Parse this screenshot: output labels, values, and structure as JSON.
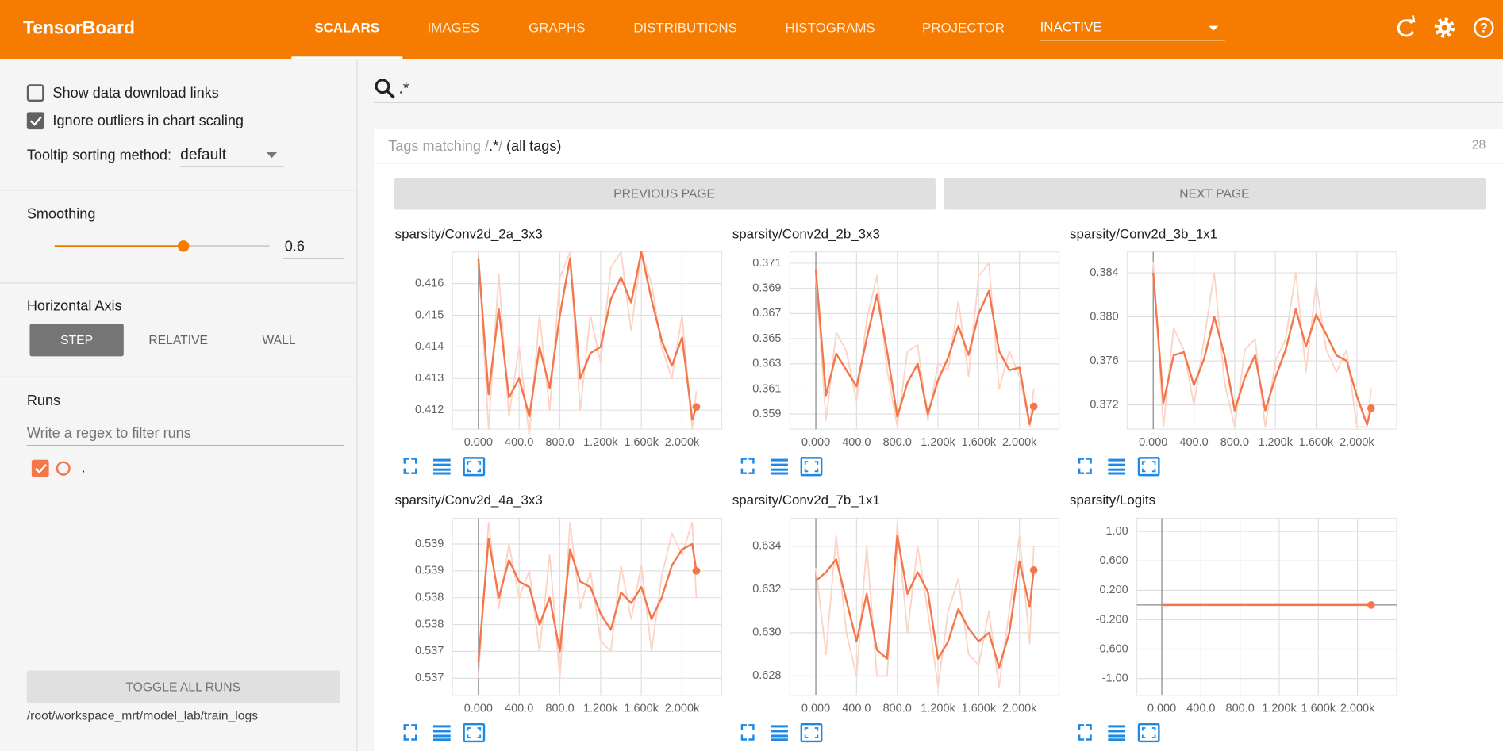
{
  "header": {
    "title": "TensorBoard",
    "tabs": [
      "SCALARS",
      "IMAGES",
      "GRAPHS",
      "DISTRIBUTIONS",
      "HISTOGRAMS",
      "PROJECTOR"
    ],
    "selected_tab": 0,
    "run_selector": "INACTIVE"
  },
  "sidebar": {
    "options": [
      {
        "label": "Show data download links",
        "checked": false
      },
      {
        "label": "Ignore outliers in chart scaling",
        "checked": true
      }
    ],
    "tooltip_label": "Tooltip sorting method:",
    "tooltip_value": "default",
    "smoothing_label": "Smoothing",
    "smoothing": 0.6,
    "axis_label": "Horizontal Axis",
    "axis_options": [
      "STEP",
      "RELATIVE",
      "WALL"
    ],
    "axis_selected": 0,
    "runs_label": "Runs",
    "runs_filter_placeholder": "Write a regex to filter runs",
    "runs": [
      {
        "name": ".",
        "checked": true
      }
    ],
    "toggle": "TOGGLE ALL RUNS",
    "logdir": "/root/workspace_mrt/model_lab/train_logs"
  },
  "search": {
    "query": ".*"
  },
  "tags": {
    "prefix": "Tags matching /",
    "regex": ".*",
    "suffix": "/",
    "note": "(all tags)",
    "count": 28
  },
  "pager": {
    "previous": "PREVIOUS PAGE",
    "next": "NEXT PAGE"
  },
  "chart_data": [
    {
      "type": "line",
      "title": "sparsity/Conv2d_2a_3x3",
      "color": "#f4774c",
      "raw_color": "#fcd3c4",
      "x": [
        0,
        100,
        200,
        300,
        400,
        500,
        600,
        700,
        800,
        900,
        1000,
        1100,
        1200,
        1300,
        1400,
        1500,
        1600,
        1700,
        1800,
        1900,
        2000,
        2100,
        2140
      ],
      "values": [
        0.4168,
        0.4125,
        0.4152,
        0.4124,
        0.413,
        0.4118,
        0.414,
        0.4127,
        0.415,
        0.4168,
        0.413,
        0.4138,
        0.414,
        0.4155,
        0.4162,
        0.4154,
        0.417,
        0.4155,
        0.4142,
        0.4134,
        0.4143,
        0.4117,
        0.4121
      ],
      "raw": [
        0.417,
        0.4114,
        0.4163,
        0.4118,
        0.414,
        0.4112,
        0.415,
        0.412,
        0.4162,
        0.417,
        0.412,
        0.415,
        0.4135,
        0.4165,
        0.417,
        0.4145,
        0.417,
        0.416,
        0.414,
        0.413,
        0.415,
        0.4114,
        0.4126
      ],
      "xlim": [
        -255,
        2390
      ],
      "ylim": [
        0.4114,
        0.417
      ],
      "xticks": [
        {
          "value": 0,
          "label": "0.000"
        },
        {
          "value": 400,
          "label": "400.0"
        },
        {
          "value": 800,
          "label": "800.0"
        },
        {
          "value": 1200,
          "label": "1.200k"
        },
        {
          "value": 1600,
          "label": "1.600k"
        },
        {
          "value": 2000,
          "label": "2.000k"
        }
      ],
      "yticks": [
        0.416,
        0.415,
        0.414,
        0.413,
        0.412
      ],
      "grid": true
    },
    {
      "type": "line",
      "title": "sparsity/Conv2d_2b_3x3",
      "color": "#f4774c",
      "raw_color": "#fcd3c4",
      "x": [
        0,
        100,
        200,
        300,
        400,
        500,
        600,
        700,
        800,
        900,
        1000,
        1100,
        1200,
        1300,
        1400,
        1500,
        1600,
        1700,
        1800,
        1900,
        2000,
        2100,
        2140
      ],
      "values": [
        0.3705,
        0.3605,
        0.3638,
        0.3625,
        0.3612,
        0.365,
        0.3685,
        0.364,
        0.3588,
        0.3615,
        0.363,
        0.359,
        0.3617,
        0.3635,
        0.366,
        0.3637,
        0.367,
        0.3688,
        0.364,
        0.3625,
        0.3627,
        0.3582,
        0.3596
      ],
      "raw": [
        0.37,
        0.3585,
        0.3655,
        0.364,
        0.36,
        0.3665,
        0.37,
        0.3625,
        0.358,
        0.364,
        0.3645,
        0.3585,
        0.363,
        0.3625,
        0.368,
        0.362,
        0.37,
        0.371,
        0.361,
        0.364,
        0.362,
        0.358,
        0.361
      ],
      "xlim": [
        -255,
        2390
      ],
      "ylim": [
        0.3578,
        0.3719
      ],
      "xticks": [
        {
          "value": 0,
          "label": "0.000"
        },
        {
          "value": 400,
          "label": "400.0"
        },
        {
          "value": 800,
          "label": "800.0"
        },
        {
          "value": 1200,
          "label": "1.200k"
        },
        {
          "value": 1600,
          "label": "1.600k"
        },
        {
          "value": 2000,
          "label": "2.000k"
        }
      ],
      "yticks": [
        0.371,
        0.369,
        0.367,
        0.365,
        0.363,
        0.361,
        0.359
      ],
      "grid": true
    },
    {
      "type": "line",
      "title": "sparsity/Conv2d_3b_1x1",
      "color": "#f4774c",
      "raw_color": "#fcd3c4",
      "x": [
        0,
        100,
        200,
        300,
        400,
        500,
        600,
        700,
        800,
        900,
        1000,
        1100,
        1200,
        1300,
        1400,
        1500,
        1600,
        1700,
        1800,
        1900,
        2000,
        2100,
        2140
      ],
      "values": [
        0.384,
        0.3722,
        0.3765,
        0.3768,
        0.3738,
        0.3762,
        0.38,
        0.3765,
        0.3715,
        0.3745,
        0.3765,
        0.3715,
        0.3745,
        0.377,
        0.3807,
        0.3773,
        0.3802,
        0.3784,
        0.3765,
        0.376,
        0.3728,
        0.3702,
        0.3717
      ],
      "raw": [
        0.385,
        0.37,
        0.379,
        0.377,
        0.372,
        0.378,
        0.384,
        0.374,
        0.37,
        0.377,
        0.378,
        0.37,
        0.376,
        0.378,
        0.384,
        0.375,
        0.383,
        0.377,
        0.375,
        0.377,
        0.37,
        0.37,
        0.3735
      ],
      "xlim": [
        -255,
        2390
      ],
      "ylim": [
        0.3698,
        0.3859
      ],
      "xticks": [
        {
          "value": 0,
          "label": "0.000"
        },
        {
          "value": 400,
          "label": "400.0"
        },
        {
          "value": 800,
          "label": "800.0"
        },
        {
          "value": 1200,
          "label": "1.200k"
        },
        {
          "value": 1600,
          "label": "1.600k"
        },
        {
          "value": 2000,
          "label": "2.000k"
        }
      ],
      "yticks": [
        0.384,
        {
          "value": 0.38,
          "label": "0.380"
        },
        0.376,
        0.372
      ],
      "grid": true
    },
    {
      "type": "line",
      "title": "sparsity/Conv2d_4a_3x3",
      "color": "#f4774c",
      "raw_color": "#fcd3c4",
      "x": [
        0,
        100,
        200,
        300,
        400,
        500,
        600,
        700,
        800,
        900,
        1000,
        1100,
        1200,
        1300,
        1400,
        1500,
        1600,
        1700,
        1800,
        1900,
        2000,
        2100,
        2140
      ],
      "values": [
        0.5368,
        0.5391,
        0.538,
        0.5387,
        0.5383,
        0.5382,
        0.5375,
        0.538,
        0.537,
        0.5389,
        0.5383,
        0.5382,
        0.5377,
        0.5374,
        0.5381,
        0.5379,
        0.5382,
        0.5376,
        0.538,
        0.5386,
        0.5389,
        0.539,
        0.5385
      ],
      "raw": [
        0.5365,
        0.5394,
        0.5378,
        0.539,
        0.538,
        0.5385,
        0.537,
        0.5388,
        0.5365,
        0.5394,
        0.5378,
        0.5385,
        0.5372,
        0.537,
        0.5386,
        0.5376,
        0.5386,
        0.537,
        0.5384,
        0.5392,
        0.5388,
        0.5394,
        0.538
      ],
      "xlim": [
        -255,
        2390
      ],
      "ylim": [
        0.53618,
        0.53948
      ],
      "xticks": [
        {
          "value": 0,
          "label": "0.000"
        },
        {
          "value": 400,
          "label": "400.0"
        },
        {
          "value": 800,
          "label": "800.0"
        },
        {
          "value": 1200,
          "label": "1.200k"
        },
        {
          "value": 1600,
          "label": "1.600k"
        },
        {
          "value": 2000,
          "label": "2.000k"
        }
      ],
      "yticks": [
        0.539,
        {
          "value": 0.5385,
          "label": "0.539"
        },
        0.538,
        {
          "value": 0.5375,
          "label": "0.538"
        },
        0.537,
        {
          "value": 0.5365,
          "label": "0.537"
        }
      ],
      "grid": true
    },
    {
      "type": "line",
      "title": "sparsity/Conv2d_7b_1x1",
      "color": "#f4774c",
      "raw_color": "#fcd3c4",
      "x": [
        0,
        100,
        200,
        300,
        400,
        500,
        600,
        700,
        800,
        900,
        1000,
        1100,
        1200,
        1300,
        1400,
        1500,
        1600,
        1700,
        1800,
        1900,
        2000,
        2100,
        2140
      ],
      "values": [
        0.6324,
        0.6328,
        0.6334,
        0.6315,
        0.6296,
        0.6318,
        0.6292,
        0.6288,
        0.6345,
        0.6318,
        0.6328,
        0.6319,
        0.6288,
        0.6296,
        0.6311,
        0.6302,
        0.6296,
        0.63,
        0.6284,
        0.63,
        0.6333,
        0.6312,
        0.6329
      ],
      "raw": [
        0.633,
        0.629,
        0.6345,
        0.63,
        0.628,
        0.634,
        0.628,
        0.628,
        0.635,
        0.63,
        0.634,
        0.631,
        0.6275,
        0.631,
        0.6325,
        0.629,
        0.6285,
        0.631,
        0.6275,
        0.631,
        0.6345,
        0.6295,
        0.634
      ],
      "xlim": [
        -255,
        2390
      ],
      "ylim": [
        0.6271,
        0.6353
      ],
      "xticks": [
        {
          "value": 0,
          "label": "0.000"
        },
        {
          "value": 400,
          "label": "400.0"
        },
        {
          "value": 800,
          "label": "800.0"
        },
        {
          "value": 1200,
          "label": "1.200k"
        },
        {
          "value": 1600,
          "label": "1.600k"
        },
        {
          "value": 2000,
          "label": "2.000k"
        }
      ],
      "yticks": [
        0.634,
        0.632,
        {
          "value": 0.63,
          "label": "0.630"
        },
        0.628
      ],
      "grid": true
    },
    {
      "type": "line",
      "title": "sparsity/Logits",
      "color": "#f4774c",
      "x": [
        0,
        100,
        200,
        300,
        400,
        500,
        600,
        700,
        800,
        900,
        1000,
        1100,
        1200,
        1300,
        1400,
        1500,
        1600,
        1700,
        1800,
        1900,
        2000,
        2100,
        2140
      ],
      "values": [
        0,
        0,
        0,
        0,
        0,
        0,
        0,
        0,
        0,
        0,
        0,
        0,
        0,
        0,
        0,
        0,
        0,
        0,
        0,
        0,
        0,
        0,
        0
      ],
      "xlim": [
        -255,
        2400
      ],
      "ylim": [
        -1.23,
        1.18
      ],
      "xticks": [
        {
          "value": 0,
          "label": "0.000"
        },
        {
          "value": 400,
          "label": "400.0"
        },
        {
          "value": 800,
          "label": "800.0"
        },
        {
          "value": 1200,
          "label": "1.200k"
        },
        {
          "value": 1600,
          "label": "1.600k"
        },
        {
          "value": 2000,
          "label": "2.000k"
        }
      ],
      "yticks": [
        {
          "value": 1,
          "label": "1.00"
        },
        {
          "value": 0.6,
          "label": "0.600"
        },
        {
          "value": 0.2,
          "label": "0.200"
        },
        {
          "value": -0.2,
          "label": "-0.200"
        },
        {
          "value": -0.6,
          "label": "-0.600"
        },
        {
          "value": -1,
          "label": "-1.00"
        }
      ],
      "grid": true
    }
  ]
}
